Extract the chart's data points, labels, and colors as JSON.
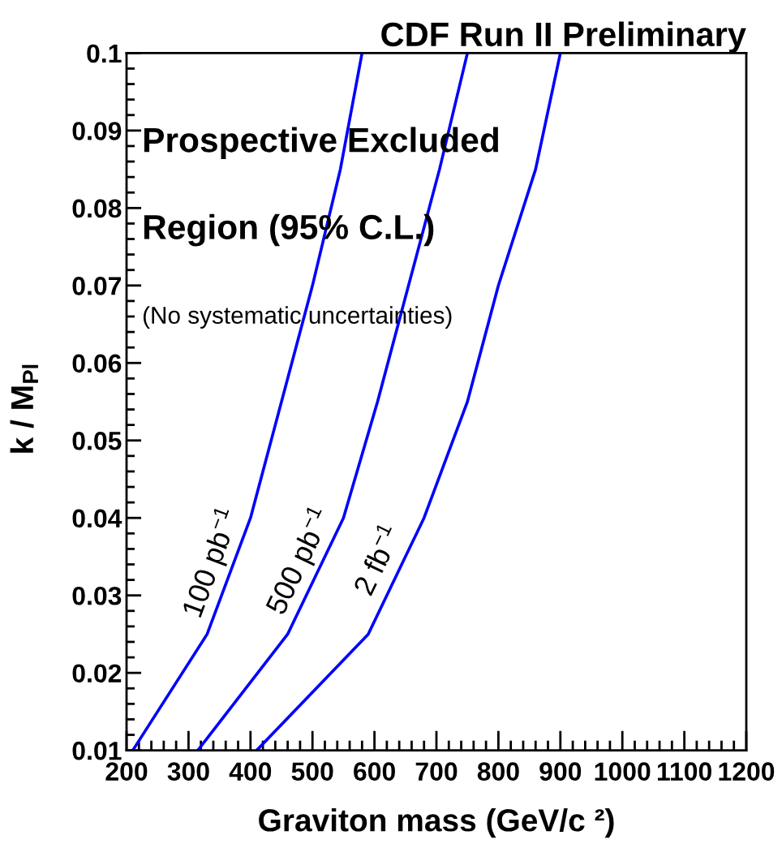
{
  "chart_data": {
    "type": "line",
    "title": "CDF Run II Preliminary",
    "xlabel": "Graviton mass (GeV/c ²)",
    "ylabel": "k / M$_{Pl}$",
    "series": [
      {
        "name": "100 pb$^{−1}$",
        "color": "#0000ff",
        "x": [
          210,
          330,
          400,
          450,
          500,
          545,
          580
        ],
        "values": [
          0.01,
          0.025,
          0.04,
          0.055,
          0.07,
          0.085,
          0.1
        ]
      },
      {
        "name": "500 pb$^{−1}$",
        "color": "#0000ff",
        "x": [
          315,
          460,
          550,
          605,
          655,
          705,
          750
        ],
        "values": [
          0.01,
          0.025,
          0.04,
          0.055,
          0.07,
          0.085,
          0.1
        ]
      },
      {
        "name": "2 fb$^{−1}$",
        "color": "#0000ff",
        "x": [
          410,
          590,
          680,
          750,
          800,
          860,
          900
        ],
        "values": [
          0.01,
          0.025,
          0.04,
          0.055,
          0.07,
          0.085,
          0.1
        ]
      }
    ],
    "xlim": [
      200,
      1200
    ],
    "xticks": [
      200,
      300,
      400,
      500,
      600,
      700,
      800,
      900,
      1000,
      1100,
      1200
    ],
    "ylim": [
      0.01,
      0.1
    ],
    "yticks": [
      0.01,
      0.02,
      0.03,
      0.04,
      0.05,
      0.06,
      0.07,
      0.08,
      0.09,
      0.1
    ],
    "annotations": [
      "Prospective Excluded",
      "Region (95% C.L.)",
      "(No systematic uncertainties)"
    ]
  }
}
